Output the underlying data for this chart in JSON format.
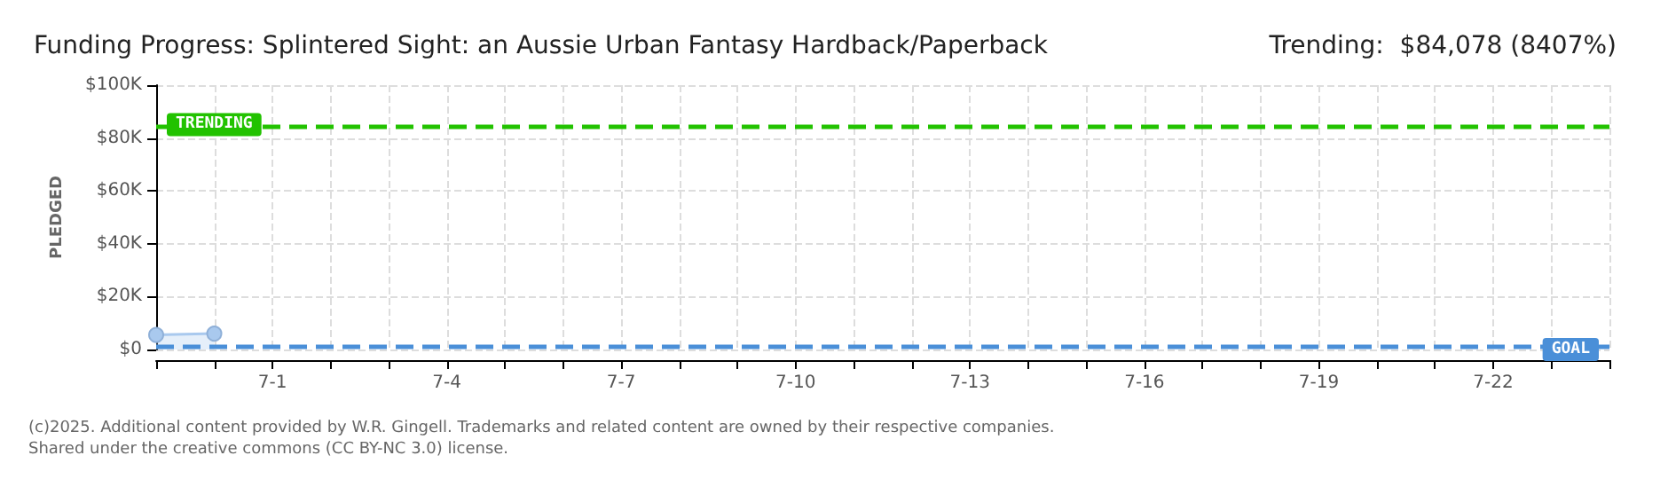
{
  "chart_data": {
    "type": "area",
    "title": "Funding Progress: Splintered Sight: an Aussie Urban Fantasy Hardback/Paperback",
    "subtitle": "Trending:  $84,078 (8407%)",
    "ylabel": "PLEDGED",
    "x": [
      "--06-29",
      "--06-30"
    ],
    "series": [
      {
        "color": "#a9c9ee",
        "values": [
          5500,
          6000
        ]
      }
    ],
    "xlim": [
      "--06-29",
      "--07-24"
    ],
    "xticks": [
      {
        "value": "--06-29",
        "label": null
      },
      {
        "value": "--06-30",
        "label": null
      },
      {
        "value": "--07-01",
        "label": "7-1"
      },
      {
        "value": "--07-02",
        "label": null
      },
      {
        "value": "--07-03",
        "label": null
      },
      {
        "value": "--07-04",
        "label": "7-4"
      },
      {
        "value": "--07-05",
        "label": null
      },
      {
        "value": "--07-06",
        "label": null
      },
      {
        "value": "--07-07",
        "label": "7-7"
      },
      {
        "value": "--07-08",
        "label": null
      },
      {
        "value": "--07-09",
        "label": null
      },
      {
        "value": "--07-10",
        "label": "7-10"
      },
      {
        "value": "--07-11",
        "label": null
      },
      {
        "value": "--07-12",
        "label": null
      },
      {
        "value": "--07-13",
        "label": "7-13"
      },
      {
        "value": "--07-14",
        "label": null
      },
      {
        "value": "--07-15",
        "label": null
      },
      {
        "value": "--07-16",
        "label": "7-16"
      },
      {
        "value": "--07-17",
        "label": null
      },
      {
        "value": "--07-18",
        "label": null
      },
      {
        "value": "--07-19",
        "label": "7-19"
      },
      {
        "value": "--07-20",
        "label": null
      },
      {
        "value": "--07-21",
        "label": null
      },
      {
        "value": "--07-22",
        "label": "7-22"
      },
      {
        "value": "--07-23",
        "label": null
      },
      {
        "value": "--07-24",
        "label": null
      }
    ],
    "ylim": [
      0,
      100000
    ],
    "yticks": [
      {
        "value": 0,
        "label": "$0"
      },
      {
        "value": 20000,
        "label": "$20K"
      },
      {
        "value": 40000,
        "label": "$40K"
      },
      {
        "value": 60000,
        "label": "$60K"
      },
      {
        "value": 80000,
        "label": "$80K"
      },
      {
        "value": 100000,
        "label": "$100K"
      }
    ],
    "ref_lines": [
      {
        "axis": "y",
        "value": 84078,
        "label": "TRENDING",
        "color": "#22c200",
        "line_style": "dashed"
      },
      {
        "axis": "y",
        "value": 1000,
        "label": "GOAL",
        "color": "#4a8fd8",
        "line_style": "dashed"
      }
    ],
    "grid": true,
    "marker": "circle",
    "annotations": [
      "(c)2025. Additional content provided by W.R. Gingell. Trademarks and related content are owned by their respective companies.",
      "Shared under the creative commons (CC BY-NC 3.0) license."
    ]
  }
}
